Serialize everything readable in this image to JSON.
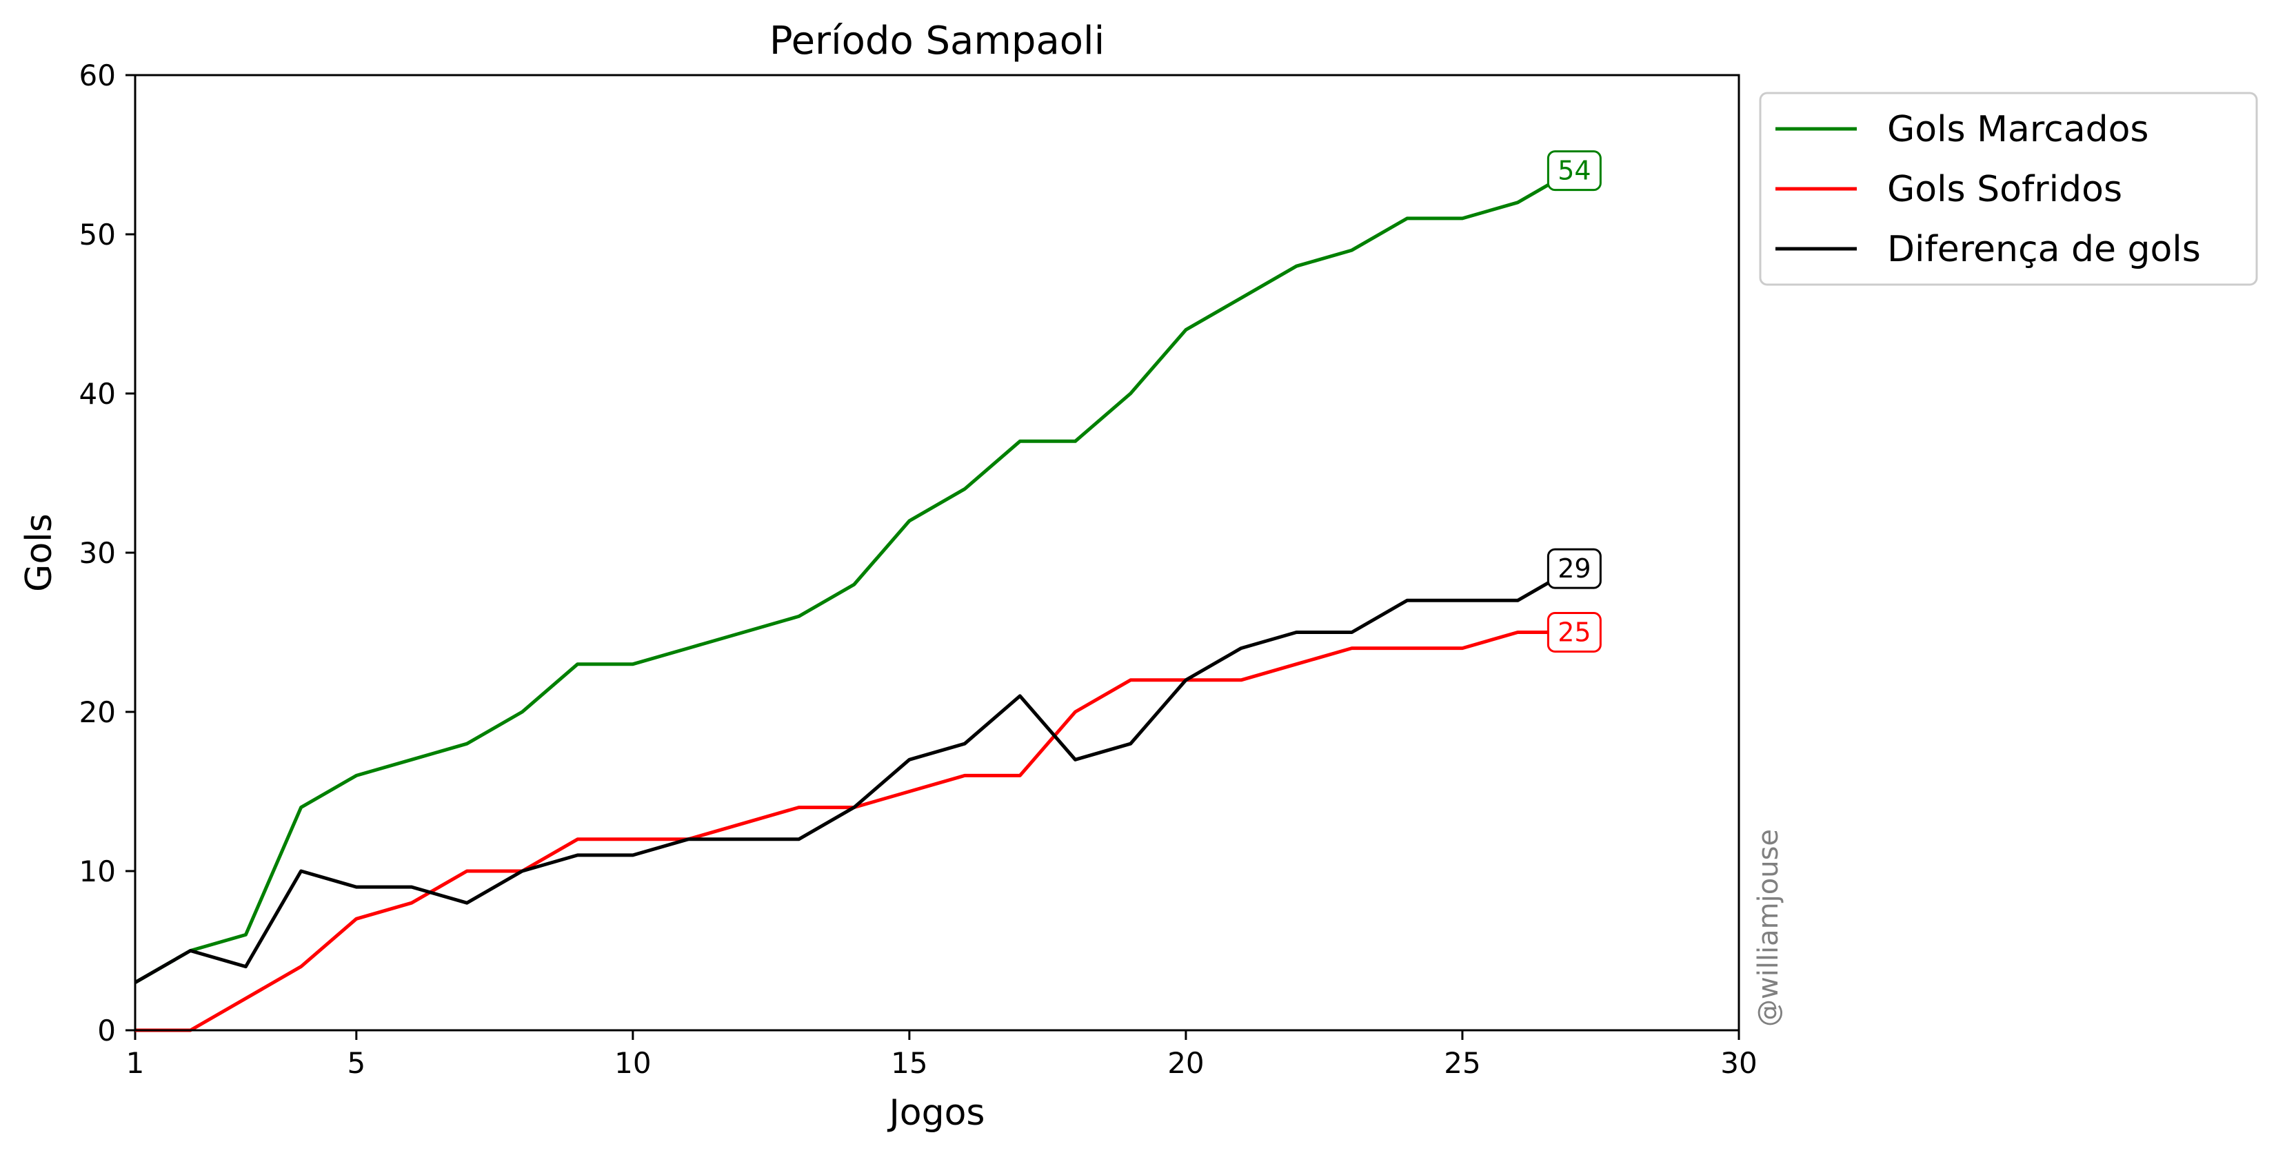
{
  "chart_data": {
    "type": "line",
    "title": "Período Sampaoli",
    "xlabel": "Jogos",
    "ylabel": "Gols",
    "xlim": [
      1,
      30
    ],
    "ylim": [
      0,
      60
    ],
    "xticks": [
      1,
      5,
      10,
      15,
      20,
      25,
      30
    ],
    "yticks": [
      0,
      10,
      20,
      30,
      40,
      50,
      60
    ],
    "grid": false,
    "legend_position": "outside upper right",
    "x": [
      1,
      2,
      3,
      4,
      5,
      6,
      7,
      8,
      9,
      10,
      11,
      12,
      13,
      14,
      15,
      16,
      17,
      18,
      19,
      20,
      21,
      22,
      23,
      24,
      25,
      26,
      27
    ],
    "series": [
      {
        "name": "Gols Marcados",
        "color": "#008000",
        "values": [
          3,
          5,
          6,
          14,
          16,
          17,
          18,
          20,
          23,
          23,
          24,
          25,
          26,
          28,
          32,
          34,
          37,
          37,
          40,
          44,
          46,
          48,
          49,
          51,
          51,
          52,
          54
        ],
        "end_label": "54"
      },
      {
        "name": "Gols Sofridos",
        "color": "#ff0000",
        "values": [
          0,
          0,
          2,
          4,
          7,
          8,
          10,
          10,
          12,
          12,
          12,
          13,
          14,
          14,
          15,
          16,
          16,
          20,
          22,
          22,
          22,
          23,
          24,
          24,
          24,
          25,
          25
        ],
        "end_label": "25"
      },
      {
        "name": "Diferença de gols",
        "color": "#000000",
        "values": [
          3,
          5,
          4,
          10,
          9,
          9,
          8,
          10,
          11,
          11,
          12,
          12,
          12,
          14,
          17,
          18,
          21,
          17,
          18,
          22,
          24,
          25,
          25,
          27,
          27,
          27,
          29
        ],
        "end_label": "29"
      }
    ]
  },
  "watermark": "@williamjouse"
}
